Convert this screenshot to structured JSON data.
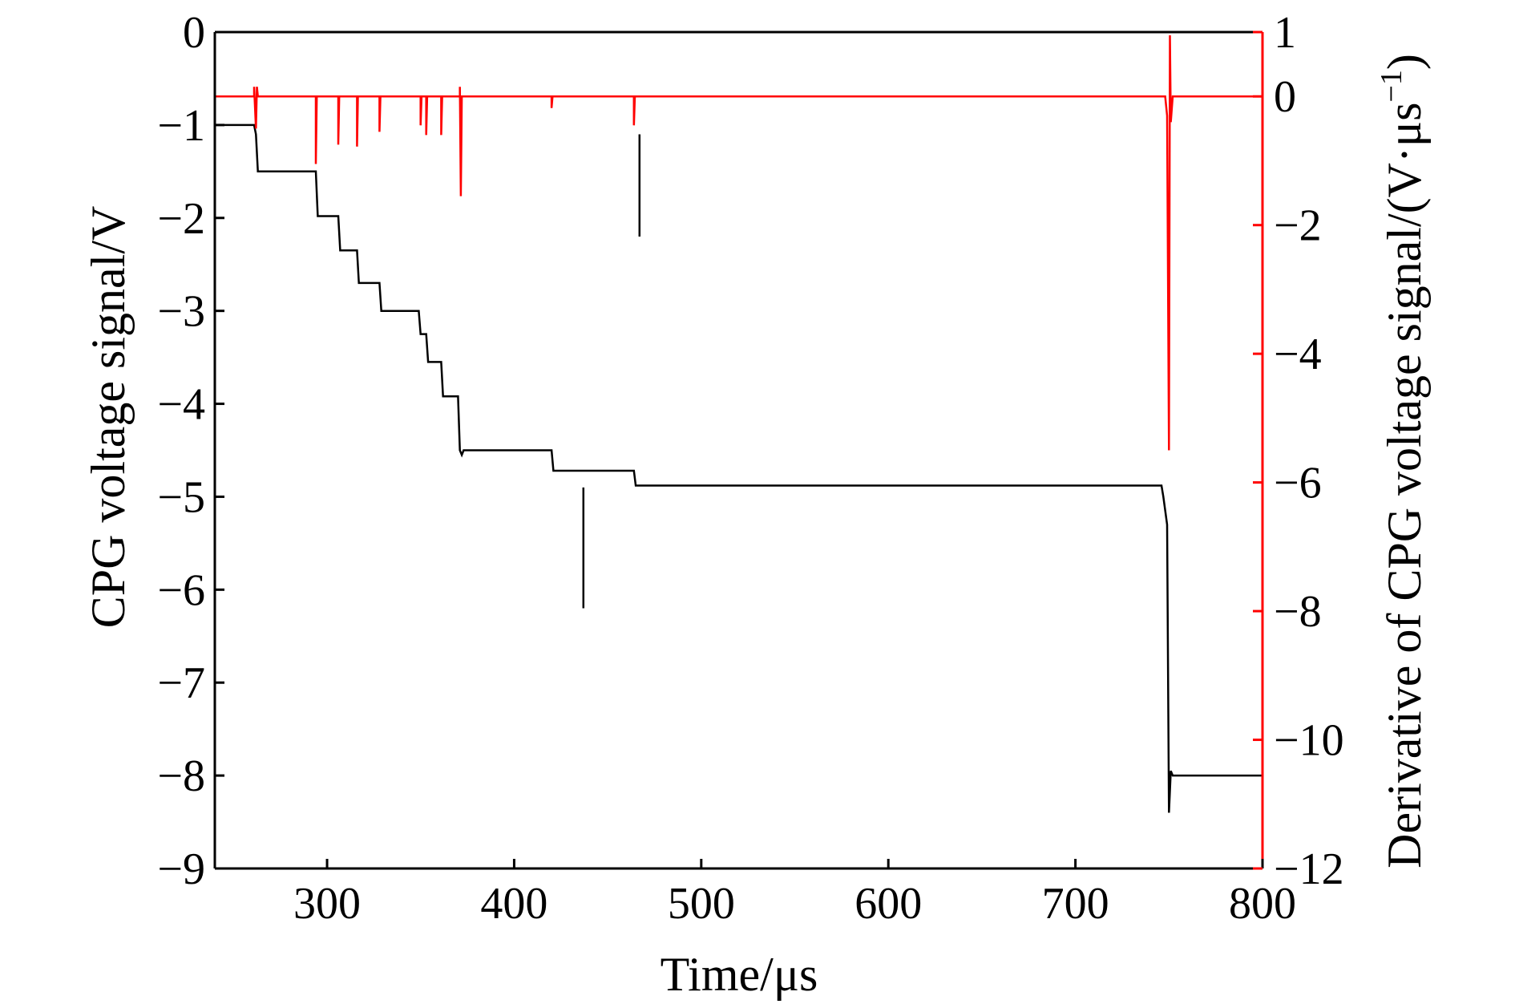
{
  "chart_data": {
    "type": "line",
    "x": {
      "label": "Time/μs",
      "lim": [
        240,
        800
      ],
      "ticks": [
        300,
        400,
        500,
        600,
        700,
        800
      ],
      "tick_labels": [
        "300",
        "400",
        "500",
        "600",
        "700",
        "800"
      ]
    },
    "y_left": {
      "label": "CPG voltage signal/V",
      "lim": [
        -9,
        0
      ],
      "ticks": [
        0,
        -1,
        -2,
        -3,
        -4,
        -5,
        -6,
        -7,
        -8,
        -9
      ],
      "tick_labels": [
        "0",
        "−1",
        "−2",
        "−3",
        "−4",
        "−5",
        "−6",
        "−7",
        "−8",
        "−9"
      ],
      "color": "#000000"
    },
    "y_right": {
      "label_main": "Derivative of CPG voltage signal/(V·μs",
      "label_sup": "−1",
      "label_end": ")",
      "lim": [
        -12,
        1
      ],
      "ticks": [
        1,
        0,
        -2,
        -4,
        -6,
        -8,
        -10,
        -12
      ],
      "tick_labels": [
        "1",
        "0",
        "−2",
        "−4",
        "−6",
        "−8",
        "−10",
        "−12"
      ],
      "color": "#ff0000"
    },
    "series": [
      {
        "axis": "left",
        "color": "#000000",
        "points": [
          [
            240,
            -1.0
          ],
          [
            261,
            -1.0
          ],
          [
            262,
            -1.1
          ],
          [
            263,
            -1.5
          ],
          [
            264,
            -1.5
          ],
          [
            294,
            -1.5
          ],
          [
            295,
            -1.98
          ],
          [
            306,
            -1.98
          ],
          [
            307,
            -2.35
          ],
          [
            316,
            -2.35
          ],
          [
            317,
            -2.7
          ],
          [
            328,
            -2.7
          ],
          [
            329,
            -3.0
          ],
          [
            349,
            -3.0
          ],
          [
            350,
            -3.25
          ],
          [
            353,
            -3.25
          ],
          [
            354,
            -3.55
          ],
          [
            361,
            -3.55
          ],
          [
            362,
            -3.92
          ],
          [
            370,
            -3.92
          ],
          [
            371,
            -4.5
          ],
          [
            372,
            -4.55
          ],
          [
            373,
            -4.5
          ],
          [
            420,
            -4.5
          ],
          [
            421,
            -4.72
          ],
          [
            464,
            -4.72
          ],
          [
            465,
            -4.88
          ],
          [
            746,
            -4.88
          ],
          [
            747,
            -5.0
          ],
          [
            749,
            -5.3
          ],
          [
            750,
            -8.4
          ],
          [
            751,
            -7.95
          ],
          [
            752,
            -8.0
          ],
          [
            800,
            -8.0
          ]
        ]
      },
      {
        "axis": "left",
        "color": "#000000",
        "points": [
          [
            437,
            -4.9
          ],
          [
            437,
            -6.2
          ]
        ]
      },
      {
        "axis": "left",
        "color": "#000000",
        "points": [
          [
            467,
            -1.1
          ],
          [
            467,
            -2.2
          ]
        ]
      },
      {
        "axis": "right",
        "color": "#ff0000",
        "points": [
          [
            240,
            0
          ],
          [
            261,
            0
          ],
          [
            261,
            0.15
          ],
          [
            262,
            -0.5
          ],
          [
            262.5,
            0.15
          ],
          [
            263,
            0
          ],
          [
            294,
            0
          ],
          [
            294,
            -1.05
          ],
          [
            294.5,
            0
          ],
          [
            306,
            0
          ],
          [
            306,
            -0.75
          ],
          [
            306.5,
            0
          ],
          [
            316,
            0
          ],
          [
            316,
            -0.78
          ],
          [
            316.5,
            0
          ],
          [
            328,
            0
          ],
          [
            328,
            -0.55
          ],
          [
            328.5,
            0
          ],
          [
            350,
            0
          ],
          [
            350,
            -0.45
          ],
          [
            350.5,
            0
          ],
          [
            353,
            0
          ],
          [
            353,
            -0.6
          ],
          [
            353.5,
            0
          ],
          [
            361,
            0
          ],
          [
            361,
            -0.6
          ],
          [
            361.5,
            0
          ],
          [
            371,
            0
          ],
          [
            371,
            0.15
          ],
          [
            371.5,
            -1.55
          ],
          [
            372,
            0
          ],
          [
            420,
            0
          ],
          [
            420,
            -0.18
          ],
          [
            420.5,
            0
          ],
          [
            464,
            0
          ],
          [
            464,
            -0.45
          ],
          [
            464.5,
            0
          ],
          [
            748,
            0
          ],
          [
            749,
            -0.3
          ],
          [
            750,
            -5.5
          ],
          [
            750.5,
            0.95
          ],
          [
            751,
            -0.4
          ],
          [
            752,
            0
          ],
          [
            800,
            0
          ]
        ]
      }
    ],
    "title": ""
  }
}
